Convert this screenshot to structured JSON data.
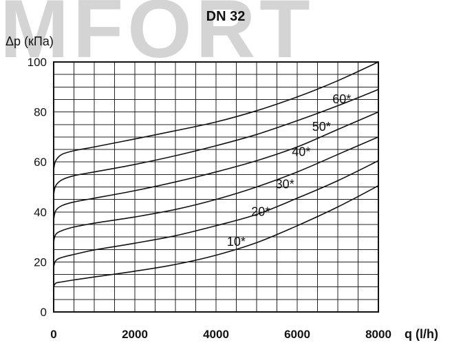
{
  "watermark": "MFORT",
  "chart_data": {
    "type": "line",
    "title": "DN 32",
    "ylabel": "Δp (кПа)",
    "xlabel": "q (l/h)",
    "xlim": [
      0,
      8000
    ],
    "ylim": [
      0,
      100
    ],
    "x_ticks": [
      "0",
      "2000",
      "4000",
      "6000",
      "8000"
    ],
    "y_ticks": [
      "0",
      "20",
      "40",
      "60",
      "80",
      "100"
    ],
    "grid": true,
    "x": [
      0,
      50,
      200,
      500,
      1000,
      2000,
      3000,
      4000,
      5000,
      6000,
      7000,
      8000
    ],
    "series": [
      {
        "name": "10*",
        "label_at": [
          4600,
          27
        ],
        "values": [
          10,
          11.5,
          12,
          12.8,
          14,
          16.3,
          19,
          22.7,
          27.7,
          34.5,
          42,
          50.5
        ]
      },
      {
        "name": "20*",
        "label_at": [
          5200,
          39
        ],
        "values": [
          18,
          20.5,
          21.8,
          23,
          24.8,
          27.5,
          30.5,
          34.5,
          39,
          45.5,
          52.5,
          60.5
        ]
      },
      {
        "name": "30*",
        "label_at": [
          5800,
          50
        ],
        "values": [
          28,
          31,
          32.5,
          34,
          35.5,
          38,
          41,
          45,
          50,
          56,
          63,
          70
        ]
      },
      {
        "name": "40*",
        "label_at": [
          6200,
          63
        ],
        "values": [
          37,
          40.5,
          42.5,
          44,
          45.5,
          48.5,
          52,
          56,
          60.5,
          66,
          73,
          80
        ]
      },
      {
        "name": "50*",
        "label_at": [
          6700,
          73
        ],
        "values": [
          47,
          50.5,
          52.8,
          54.5,
          56,
          59,
          62.5,
          66.5,
          71,
          76.5,
          82.5,
          89
        ]
      },
      {
        "name": "60*",
        "label_at": [
          7200,
          84
        ],
        "values": [
          57,
          60.5,
          63,
          64.5,
          66,
          69.2,
          72.5,
          76,
          80.5,
          86,
          92.5,
          100
        ]
      }
    ]
  }
}
